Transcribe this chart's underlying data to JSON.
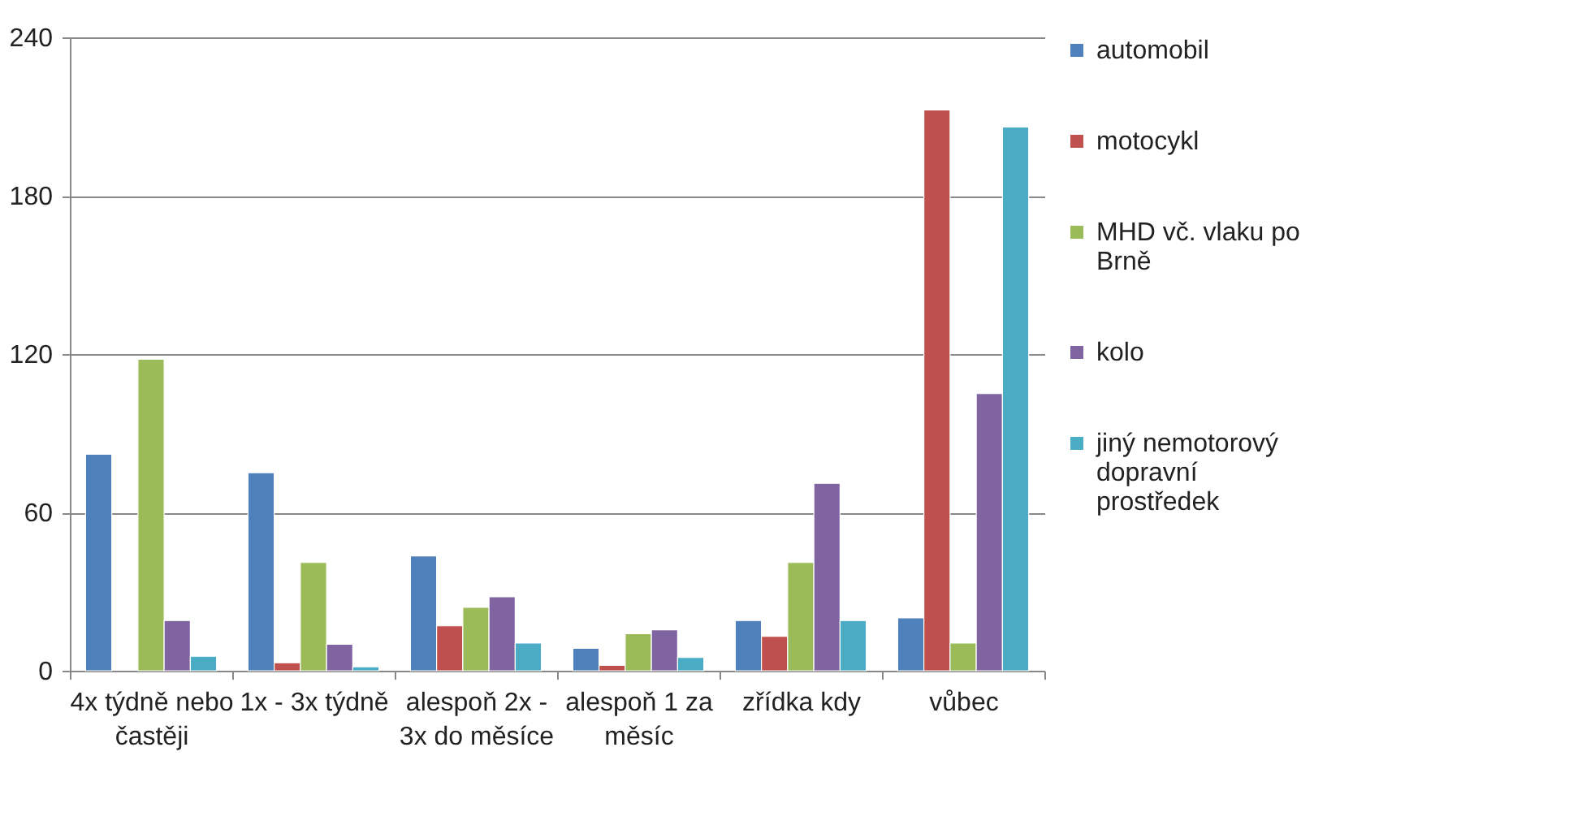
{
  "chart_data": {
    "type": "bar",
    "categories": [
      "4x týdně nebo častěji",
      "1x - 3x týdně",
      "alespoň 2x - 3x do měsíce",
      "alespoň 1 za měsíc",
      "zřídka kdy",
      "vůbec"
    ],
    "series": [
      {
        "name": "automobil",
        "color": "#4f81bd",
        "values": [
          82,
          75,
          43.5,
          8.5,
          19,
          20
        ]
      },
      {
        "name": "motocykl",
        "color": "#c0504d",
        "values": [
          null,
          3,
          17,
          2,
          13,
          212.5
        ]
      },
      {
        "name": "MHD vč. vlaku po Brně",
        "color": "#9bbb59",
        "values": [
          118,
          41,
          24,
          14,
          41,
          10.5
        ]
      },
      {
        "name": "kolo",
        "color": "#8064a2",
        "values": [
          19,
          10,
          28,
          15.5,
          71,
          105
        ]
      },
      {
        "name": "jiný nemotorový dopravní prostředek",
        "color": "#4bacc6",
        "values": [
          5.5,
          1.5,
          10.5,
          5,
          19,
          206
        ]
      }
    ],
    "ylim": [
      0,
      240
    ],
    "yticks": [
      0,
      60,
      120,
      180,
      240
    ],
    "grid": "y",
    "legend": "right"
  }
}
